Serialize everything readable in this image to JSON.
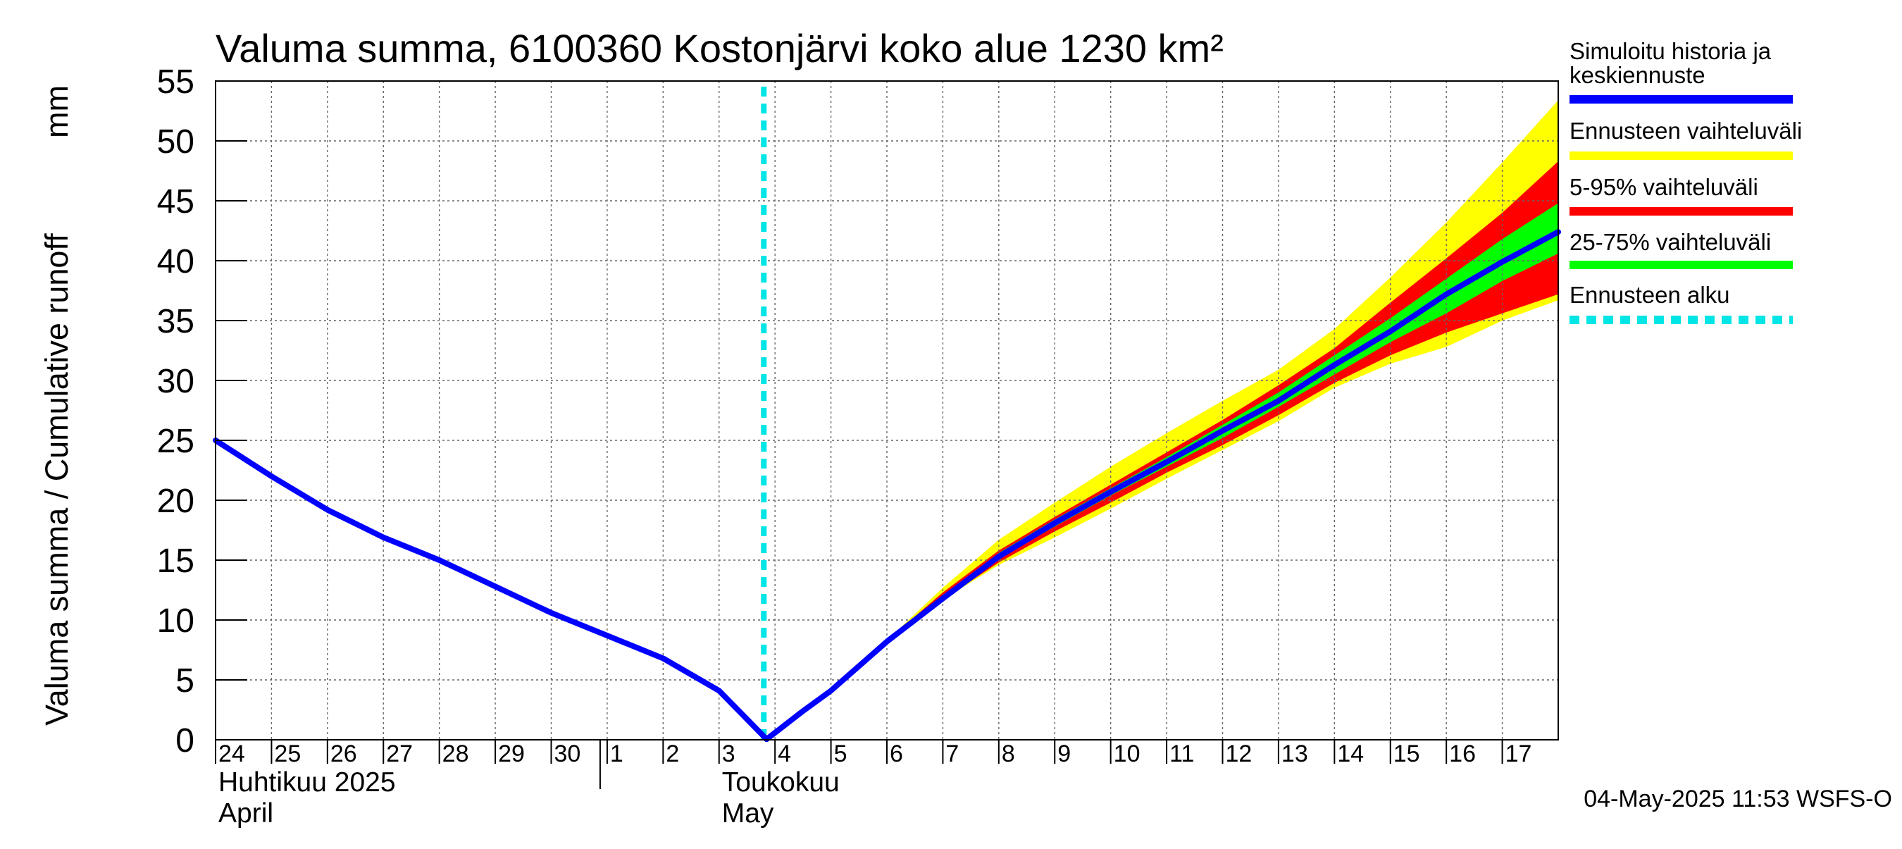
{
  "chart_data": {
    "type": "area",
    "title": "Valuma summa, 6100360 Kostonjärvi koko alue 1230 km²",
    "ylabel": "Valuma summa / Cumulative runoff",
    "yunit": "mm",
    "ylim": [
      0,
      55
    ],
    "yticks": [
      0,
      5,
      10,
      15,
      20,
      25,
      30,
      35,
      40,
      45,
      50,
      55
    ],
    "x_start": 24.0,
    "x_end": 48.0,
    "day_labels": [
      {
        "t": 24,
        "label": "24"
      },
      {
        "t": 25,
        "label": "25"
      },
      {
        "t": 26,
        "label": "26"
      },
      {
        "t": 27,
        "label": "27"
      },
      {
        "t": 28,
        "label": "28"
      },
      {
        "t": 29,
        "label": "29"
      },
      {
        "t": 30,
        "label": "30"
      },
      {
        "t": 31,
        "label": "1"
      },
      {
        "t": 32,
        "label": "2"
      },
      {
        "t": 33,
        "label": "3"
      },
      {
        "t": 34,
        "label": "4"
      },
      {
        "t": 35,
        "label": "5"
      },
      {
        "t": 36,
        "label": "6"
      },
      {
        "t": 37,
        "label": "7"
      },
      {
        "t": 38,
        "label": "8"
      },
      {
        "t": 39,
        "label": "9"
      },
      {
        "t": 40,
        "label": "10"
      },
      {
        "t": 41,
        "label": "11"
      },
      {
        "t": 42,
        "label": "12"
      },
      {
        "t": 43,
        "label": "13"
      },
      {
        "t": 44,
        "label": "14"
      },
      {
        "t": 45,
        "label": "15"
      },
      {
        "t": 46,
        "label": "16"
      },
      {
        "t": 47,
        "label": "17"
      }
    ],
    "months": [
      {
        "t": 24,
        "fi": "Huhtikuu  2025",
        "en": "April"
      },
      {
        "t": 33.0,
        "fi": "Toukokuu",
        "en": "May"
      }
    ],
    "month_separator_t": 31.0,
    "forecast_start_t": 33.8,
    "series": [
      {
        "name": "Simuloitu historia ja keskiennuste",
        "color": "#0000ff",
        "x": [
          24,
          25,
          26,
          27,
          28,
          29,
          30,
          31,
          32,
          33,
          33.85,
          34.5,
          35,
          36,
          37,
          38,
          39,
          40,
          41,
          42,
          43,
          44,
          45,
          46,
          47,
          48
        ],
        "y": [
          25,
          22,
          19.2,
          16.9,
          15,
          12.8,
          10.6,
          8.7,
          6.8,
          4.1,
          0.05,
          2.4,
          4.1,
          8.2,
          11.8,
          15.3,
          18.1,
          20.7,
          23.2,
          25.8,
          28.3,
          31.3,
          34.1,
          37.2,
          39.9,
          42.4
        ]
      }
    ],
    "bands": [
      {
        "name": "Ennusteen vaihteluväli",
        "color": "#ffff00",
        "x": [
          36,
          37,
          38,
          39,
          40,
          41,
          42,
          43,
          44,
          45,
          46,
          47,
          48
        ],
        "low": [
          8.2,
          11.7,
          14.6,
          16.9,
          19.3,
          21.8,
          24.2,
          26.6,
          29.4,
          31.4,
          32.8,
          35,
          36.7
        ],
        "high": [
          8.3,
          12.7,
          16.7,
          19.8,
          22.8,
          25.6,
          28.3,
          30.9,
          34.3,
          38.6,
          43.2,
          48.2,
          53.4
        ]
      },
      {
        "name": "5-95% vaihteluväli",
        "color": "#ff0000",
        "x": [
          36,
          37,
          38,
          39,
          40,
          41,
          42,
          43,
          44,
          45,
          46,
          47,
          48
        ],
        "low": [
          8.2,
          11.7,
          14.8,
          17.4,
          19.8,
          22.3,
          24.6,
          27.1,
          29.8,
          32.1,
          34,
          35.6,
          37.2
        ],
        "high": [
          8.3,
          12.3,
          15.8,
          18.6,
          21.3,
          24,
          26.7,
          29.6,
          32.7,
          36.5,
          40.2,
          44,
          48.3
        ]
      },
      {
        "name": "25-75% vaihteluväli",
        "color": "#00ff00",
        "x": [
          36,
          37,
          38,
          39,
          40,
          41,
          42,
          43,
          44,
          45,
          46,
          47,
          48
        ],
        "low": [
          8.2,
          11.8,
          15.1,
          17.8,
          20.4,
          22.8,
          25.2,
          27.8,
          30.5,
          33.2,
          35.6,
          38.3,
          40.6
        ],
        "high": [
          8.3,
          12.0,
          15.6,
          18.4,
          21.0,
          23.6,
          26.3,
          29.0,
          32.1,
          35.2,
          38.5,
          41.8,
          44.8
        ]
      }
    ],
    "legend": [
      {
        "label": "Simuloitu historia ja\nkeskiennuste",
        "color": "#0000ff",
        "style": "solid"
      },
      {
        "label": "Ennusteen vaihteluväli",
        "color": "#ffff00",
        "style": "solid"
      },
      {
        "label": "5-95% vaihteluväli",
        "color": "#ff0000",
        "style": "solid"
      },
      {
        "label": "25-75% vaihteluväli",
        "color": "#00ff00",
        "style": "solid"
      },
      {
        "label": "Ennusteen alku",
        "color": "#00e5e5",
        "style": "dashed"
      }
    ],
    "grid": true,
    "legend_position": "right",
    "footer": "04-May-2025 11:53 WSFS-O"
  }
}
